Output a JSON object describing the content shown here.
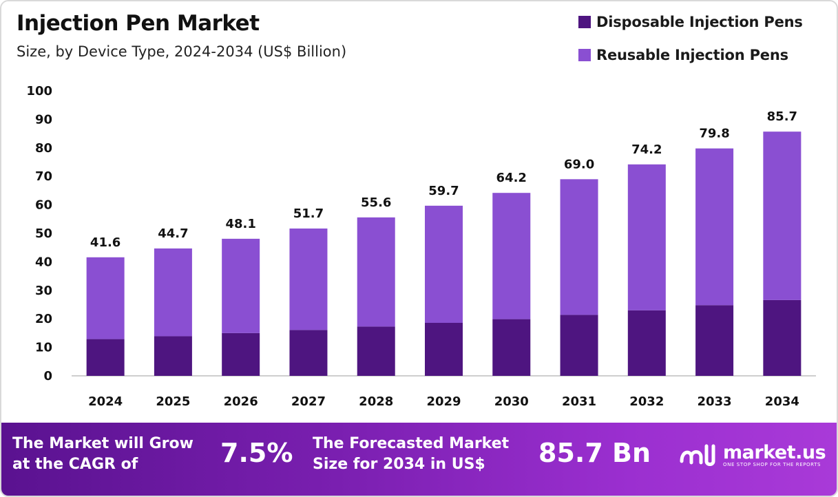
{
  "header": {
    "title": "Injection Pen Market",
    "subtitle": "Size, by Device Type, 2024-2034 (US$ Billion)"
  },
  "colors": {
    "disposable": "#4e1580",
    "reusable": "#8a4fd2",
    "axis": "#bdbdbd"
  },
  "chart_data": {
    "type": "bar",
    "stacked": true,
    "title": "Injection Pen Market",
    "subtitle": "Size, by Device Type, 2024-2034 (US$ Billion)",
    "categories": [
      "2024",
      "2025",
      "2026",
      "2027",
      "2028",
      "2029",
      "2030",
      "2031",
      "2032",
      "2033",
      "2034"
    ],
    "series": [
      {
        "name": "Disposable Injection Pens",
        "values": [
          12.9,
          13.9,
          15.0,
          16.1,
          17.3,
          18.6,
          19.9,
          21.4,
          23.0,
          24.8,
          26.6
        ]
      },
      {
        "name": "Reusable Injection Pens",
        "values": [
          28.7,
          30.8,
          33.1,
          35.6,
          38.3,
          41.1,
          44.3,
          47.6,
          51.2,
          55.0,
          59.1
        ]
      }
    ],
    "totals": [
      "41.6",
      "44.7",
      "48.1",
      "51.7",
      "55.6",
      "59.7",
      "64.2",
      "69.0",
      "74.2",
      "79.8",
      "85.7"
    ],
    "ylim": [
      0,
      100
    ],
    "yticks": [
      0,
      10,
      20,
      30,
      40,
      50,
      60,
      70,
      80,
      90,
      100
    ],
    "xlabel": "",
    "ylabel": "",
    "legend_position": "top-right",
    "grid": false
  },
  "footer": {
    "cagr_text_line1": "The Market will Grow",
    "cagr_text_line2": "at the CAGR of",
    "cagr_value": "7.5%",
    "forecast_text_line1": "The Forecasted Market",
    "forecast_text_line2": "Size for 2034 in US$",
    "forecast_value": "85.7 Bn",
    "brand_name": "market.us",
    "brand_tagline": "ONE STOP SHOP FOR THE REPORTS"
  }
}
